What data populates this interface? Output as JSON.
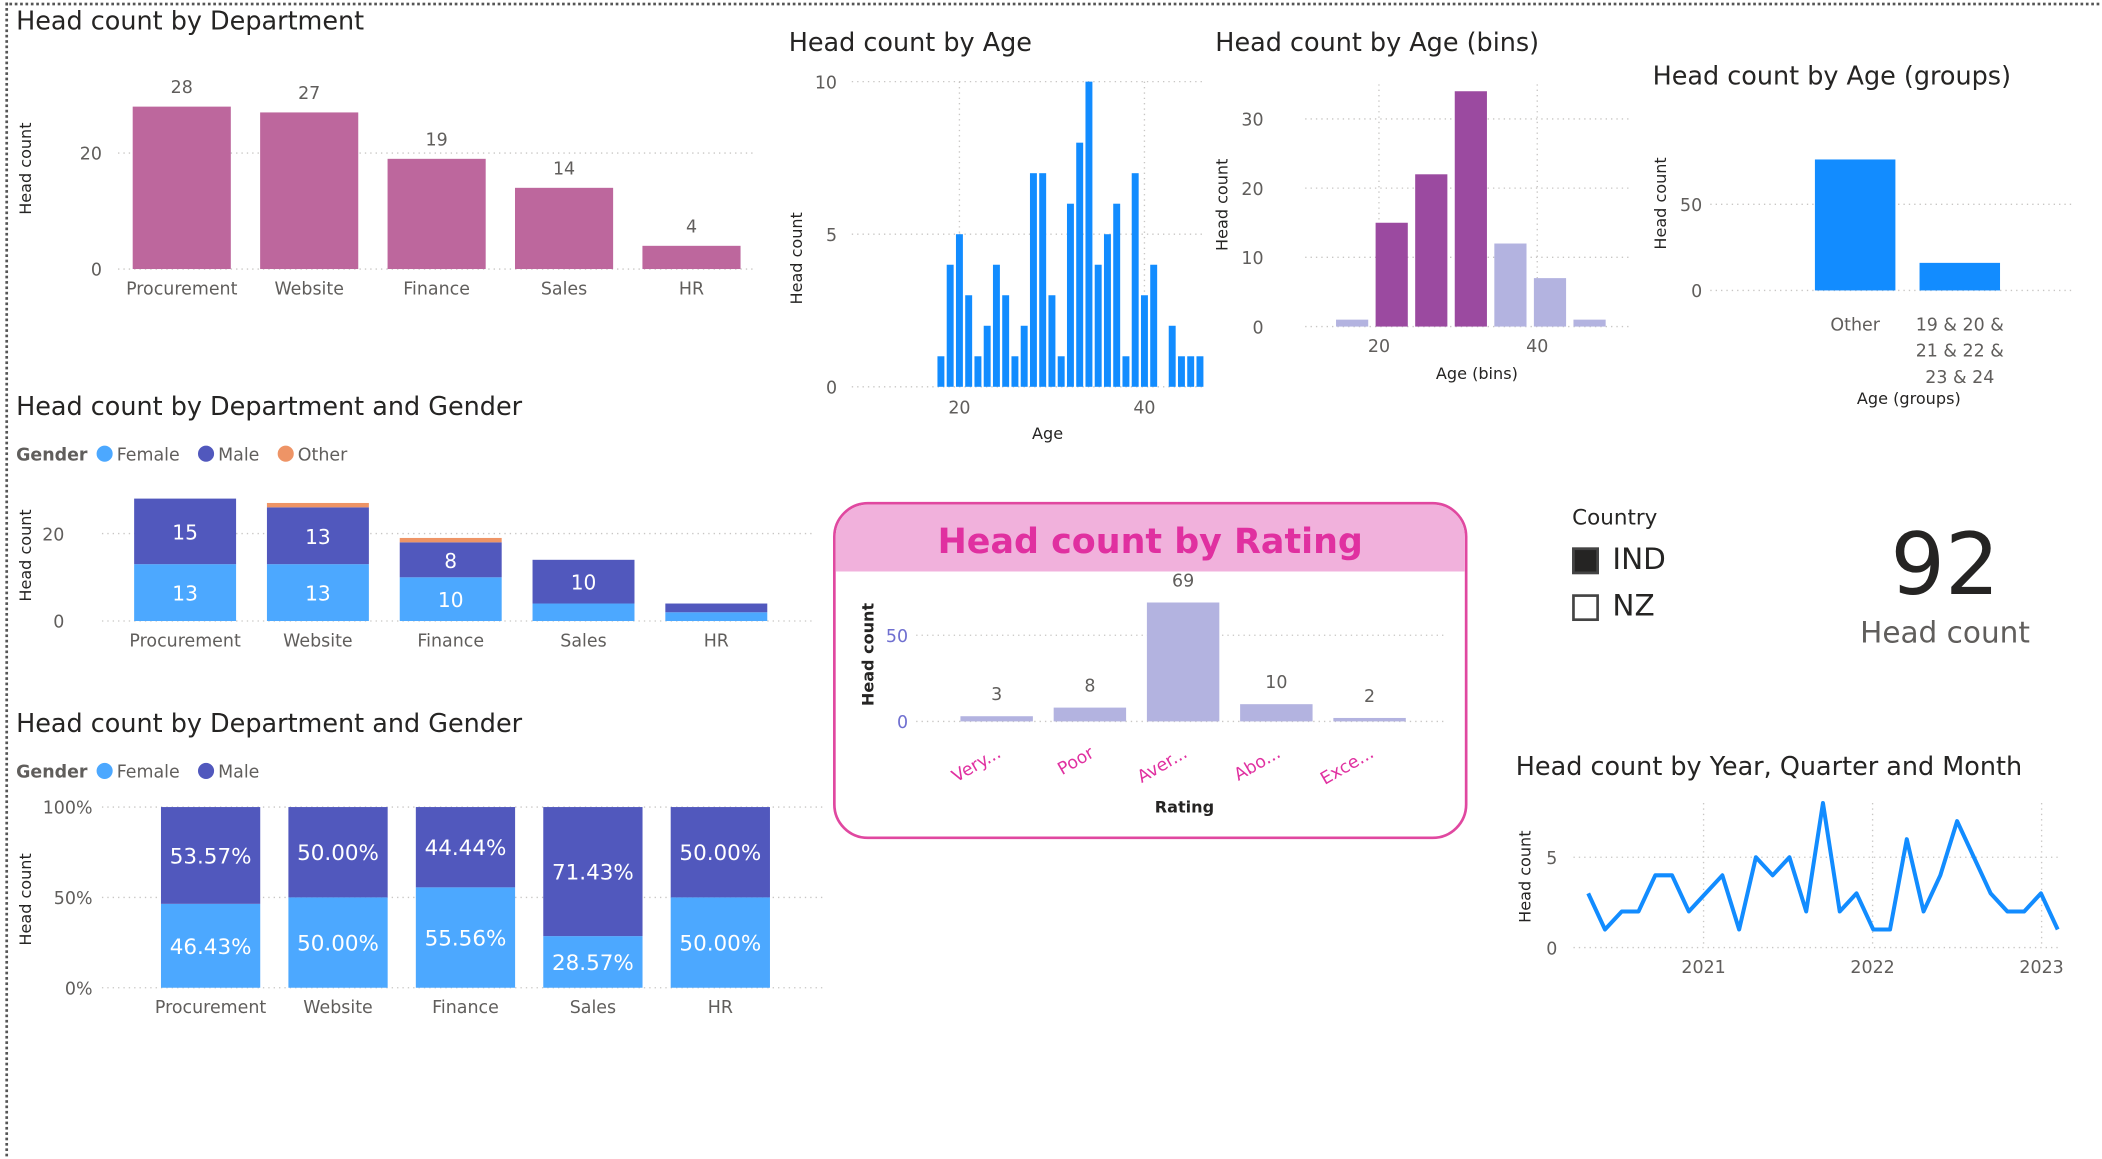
{
  "colors": {
    "dept": "#bd679d",
    "blue": "#128cff",
    "purple": "#9b4aa0",
    "lavender": "#b3b3e0",
    "female": "#4ca8ff",
    "male": "#5158bd",
    "other": "#ee9466"
  },
  "dept": {
    "title": "Head count by Department",
    "y": "Head count"
  },
  "age": {
    "title": "Head count by Age",
    "x": "Age",
    "y": "Head count"
  },
  "bins": {
    "title": "Head count by Age (bins)",
    "x": "Age (bins)",
    "y": "Head count"
  },
  "groups": {
    "title": "Head count by Age (groups)",
    "x": "Age (groups)",
    "y": "Head count"
  },
  "stack": {
    "title": "Head count by Department and Gender",
    "legend": "Gender",
    "y": "Head count"
  },
  "pct": {
    "title": "Head count by Department and Gender",
    "legend": "Gender",
    "y": "Head count"
  },
  "rating": {
    "title": "Head count by Rating",
    "x": "Rating",
    "y": "Head count"
  },
  "slicer": {
    "title": "Country",
    "opt1": "IND",
    "opt2": "NZ"
  },
  "card": {
    "value": "92",
    "label": "Head count"
  },
  "line": {
    "title": "Head count by Year, Quarter and Month",
    "y": "Head count"
  },
  "chart_data": [
    {
      "type": "bar",
      "title": "Head count by Department",
      "categories": [
        "Procurement",
        "Website",
        "Finance",
        "Sales",
        "HR"
      ],
      "values": [
        28,
        27,
        19,
        14,
        4
      ],
      "ylabel": "Head count",
      "yticks": [
        0,
        20
      ],
      "ylim": [
        0,
        30
      ]
    },
    {
      "type": "bar",
      "title": "Head count by Age",
      "xlabel": "Age",
      "ylabel": "Head count",
      "x": [
        18,
        19,
        20,
        21,
        22,
        23,
        24,
        25,
        26,
        27,
        28,
        29,
        30,
        31,
        32,
        33,
        34,
        35,
        36,
        37,
        38,
        39,
        40,
        41,
        42,
        43,
        44,
        45,
        46
      ],
      "values": [
        1,
        4,
        5,
        3,
        1,
        2,
        4,
        3,
        1,
        2,
        7,
        7,
        3,
        1,
        6,
        8,
        10,
        4,
        5,
        6,
        1,
        7,
        3,
        4,
        0,
        2,
        1,
        1,
        1
      ],
      "xticks": [
        20,
        40
      ],
      "yticks": [
        0,
        5,
        10
      ],
      "ylim": [
        0,
        10
      ]
    },
    {
      "type": "bar",
      "title": "Head count by Age (bins)",
      "xlabel": "Age (bins)",
      "ylabel": "Head count",
      "categories": [
        "15",
        "20",
        "25",
        "30",
        "35",
        "40",
        "45"
      ],
      "values": [
        1,
        15,
        22,
        34,
        12,
        7,
        1
      ],
      "xticks": [
        20,
        40
      ],
      "yticks": [
        0,
        10,
        20,
        30
      ],
      "ylim": [
        0,
        35
      ]
    },
    {
      "type": "bar",
      "title": "Head count by Age (groups)",
      "xlabel": "Age (groups)",
      "ylabel": "Head count",
      "categories": [
        "Other",
        "19 & 20 & 21 & 22 & 23 & 24"
      ],
      "category_lines": [
        [
          "Other"
        ],
        [
          "19 & 20 &",
          "21 & 22 &",
          "23 & 24"
        ]
      ],
      "values": [
        76,
        16
      ],
      "yticks": [
        0,
        50
      ],
      "ylim": [
        0,
        80
      ]
    },
    {
      "type": "bar",
      "stacked": true,
      "title": "Head count by Department and Gender",
      "legend_title": "Gender",
      "ylabel": "Head count",
      "categories": [
        "Procurement",
        "Website",
        "Finance",
        "Sales",
        "HR"
      ],
      "series": [
        {
          "name": "Female",
          "values": [
            13,
            13,
            10,
            4,
            2
          ]
        },
        {
          "name": "Male",
          "values": [
            15,
            13,
            8,
            10,
            2
          ]
        },
        {
          "name": "Other",
          "values": [
            0,
            1,
            1,
            0,
            0
          ]
        }
      ],
      "yticks": [
        0,
        20
      ],
      "ylim": [
        0,
        30
      ]
    },
    {
      "type": "bar",
      "stacked": true,
      "percent": true,
      "title": "Head count by Department and Gender",
      "legend_title": "Gender",
      "ylabel": "Head count",
      "categories": [
        "Procurement",
        "Website",
        "Finance",
        "Sales",
        "HR"
      ],
      "series": [
        {
          "name": "Female",
          "values": [
            46.43,
            50,
            55.56,
            28.57,
            50
          ],
          "labels": [
            "46.43%",
            "50.00%",
            "55.56%",
            "28.57%",
            "50.00%"
          ]
        },
        {
          "name": "Male",
          "values": [
            53.57,
            50,
            44.44,
            71.43,
            50
          ],
          "labels": [
            "53.57%",
            "50.00%",
            "44.44%",
            "71.43%",
            "50.00%"
          ]
        }
      ],
      "yticks": [
        "0%",
        "50%",
        "100%"
      ]
    },
    {
      "type": "bar",
      "title": "Head count by Rating",
      "xlabel": "Rating",
      "ylabel": "Head count",
      "categories": [
        "Very...",
        "Poor",
        "Aver...",
        "Abo...",
        "Exce..."
      ],
      "values": [
        3,
        8,
        69,
        10,
        2
      ],
      "yticks": [
        0,
        50
      ],
      "ylim": [
        0,
        80
      ]
    },
    {
      "type": "line",
      "title": "Head count by Year, Quarter and Month",
      "ylabel": "Head count",
      "values": [
        3,
        1,
        2,
        2,
        4,
        4,
        2,
        3,
        4,
        1,
        5,
        4,
        5,
        2,
        8,
        2,
        3,
        1,
        1,
        6,
        2,
        4,
        7,
        5,
        3,
        2,
        2,
        3,
        1
      ],
      "xticks": [
        "2021",
        "2022",
        "2023"
      ],
      "yticks": [
        0,
        5
      ],
      "ylim": [
        0,
        8
      ]
    }
  ]
}
